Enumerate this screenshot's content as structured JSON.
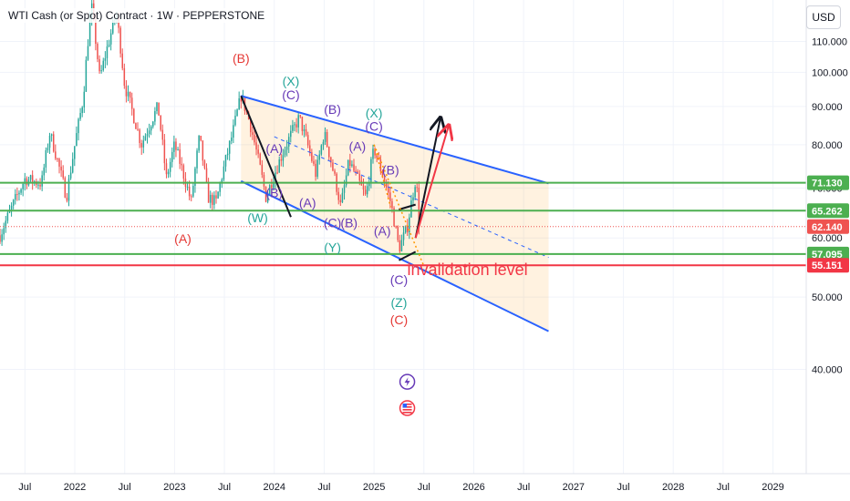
{
  "header": {
    "title": "WTI Cash (or Spot) Contract · 1W · PEPPERSTONE"
  },
  "currency_button": "USD",
  "colors": {
    "up": "#26a69a",
    "down": "#ef5350",
    "channel": "#2962ff",
    "support": "#4caf50",
    "invalidation": "#f23645",
    "fib": "#ff9800",
    "wave_red": "#e53935",
    "wave_teal": "#26a69a",
    "wave_purple": "#673ab7"
  },
  "chart_data": {
    "type": "candlestick",
    "title": "WTI Cash (or Spot) Contract · 1W · PEPPERSTONE",
    "y_axis": {
      "scale": "log",
      "range": [
        29,
        125
      ],
      "tick_labels": [
        "40.000",
        "50.000",
        "60.000",
        "70.000",
        "80.000",
        "90.000",
        "100.000",
        "110.000"
      ]
    },
    "x_axis": {
      "range": [
        "2021-04",
        "2029-05"
      ],
      "tick_labels": [
        {
          "date": "2021-07",
          "label": "Jul"
        },
        {
          "date": "2022-01",
          "label": "2022"
        },
        {
          "date": "2022-07",
          "label": "Jul"
        },
        {
          "date": "2023-01",
          "label": "2023"
        },
        {
          "date": "2023-07",
          "label": "Jul"
        },
        {
          "date": "2024-01",
          "label": "2024"
        },
        {
          "date": "2024-07",
          "label": "Jul"
        },
        {
          "date": "2025-01",
          "label": "2025"
        },
        {
          "date": "2025-07",
          "label": "Jul"
        },
        {
          "date": "2026-01",
          "label": "2026"
        },
        {
          "date": "2026-07",
          "label": "Jul"
        },
        {
          "date": "2027-01",
          "label": "2027"
        },
        {
          "date": "2027-07",
          "label": "Jul"
        },
        {
          "date": "2028-01",
          "label": "2028"
        },
        {
          "date": "2028-07",
          "label": "Jul"
        },
        {
          "date": "2029-01",
          "label": "2029"
        }
      ]
    },
    "price_path": [
      [
        "2021-04",
        60.5
      ],
      [
        "2021-07",
        72
      ],
      [
        "2021-09",
        71
      ],
      [
        "2021-10",
        83
      ],
      [
        "2021-12",
        68
      ],
      [
        "2022-02",
        92
      ],
      [
        "2022-03",
        123
      ],
      [
        "2022-04",
        98
      ],
      [
        "2022-06",
        120
      ],
      [
        "2022-07",
        96
      ],
      [
        "2022-09",
        80
      ],
      [
        "2022-11",
        90
      ],
      [
        "2022-12",
        72
      ],
      [
        "2023-01",
        80
      ],
      [
        "2023-03",
        67
      ],
      [
        "2023-04",
        82
      ],
      [
        "2023-05",
        68
      ],
      [
        "2023-06",
        67
      ],
      [
        "2023-08",
        83
      ],
      [
        "2023-09",
        93
      ],
      [
        "2023-10",
        86
      ],
      [
        "2023-12",
        68
      ],
      [
        "2024-02",
        78
      ],
      [
        "2024-04",
        87
      ],
      [
        "2024-06",
        73
      ],
      [
        "2024-07",
        83
      ],
      [
        "2024-09",
        66
      ],
      [
        "2024-10",
        76
      ],
      [
        "2024-12",
        68
      ],
      [
        "2025-01",
        79
      ],
      [
        "2025-03",
        67
      ],
      [
        "2025-04",
        58
      ],
      [
        "2025-05",
        62
      ],
      [
        "2025-06",
        72
      ],
      [
        "2025-06-20",
        62.14
      ]
    ],
    "horizontal_levels": [
      {
        "value": 71.13,
        "label": "71.130",
        "style": "support"
      },
      {
        "value": 65.262,
        "label": "65.262",
        "style": "support"
      },
      {
        "value": 62.14,
        "label": "62.140",
        "style": "last-price"
      },
      {
        "value": 57.095,
        "label": "57.095",
        "style": "support"
      },
      {
        "value": 55.151,
        "label": "55.151",
        "style": "invalidation"
      }
    ],
    "channel": {
      "upper": [
        [
          "2023-09",
          93
        ],
        [
          "2026-10",
          71
        ]
      ],
      "lower": [
        [
          "2023-09",
          71.5
        ],
        [
          "2026-10",
          45
        ]
      ],
      "mid": [
        [
          "2024-01",
          82
        ],
        [
          "2026-10",
          56.5
        ]
      ]
    },
    "drawings": [
      {
        "kind": "black-line",
        "points": [
          [
            "2023-09",
            93
          ],
          [
            "2024-03",
            64
          ]
        ]
      },
      {
        "kind": "black-line",
        "points": [
          [
            "2025-04",
            56
          ],
          [
            "2025-06",
            57.5
          ]
        ]
      },
      {
        "kind": "black-line",
        "points": [
          [
            "2025-04",
            65.5
          ],
          [
            "2025-06",
            66.5
          ]
        ]
      },
      {
        "kind": "black-arrow",
        "points": [
          [
            "2025-06",
            60
          ],
          [
            "2025-09",
            87
          ]
        ]
      },
      {
        "kind": "red-arrow",
        "points": [
          [
            "2025-06",
            60
          ],
          [
            "2025-10",
            85
          ]
        ]
      },
      {
        "kind": "fib-dotted",
        "points": [
          [
            "2025-01",
            80
          ],
          [
            "2025-07",
            55
          ]
        ]
      },
      {
        "kind": "fib-dotted",
        "points": [
          [
            "2025-01",
            80
          ],
          [
            "2025-03",
            66
          ]
        ]
      }
    ],
    "wave_labels": [
      {
        "text": "(B)",
        "date": "2023-09",
        "value": 103,
        "color": "red"
      },
      {
        "text": "(A)",
        "date": "2023-02",
        "value": 59,
        "color": "red"
      },
      {
        "text": "(X)",
        "date": "2024-03",
        "value": 96,
        "color": "teal"
      },
      {
        "text": "(C)",
        "date": "2024-03",
        "value": 92,
        "color": "purple"
      },
      {
        "text": "(B)",
        "date": "2024-08",
        "value": 88,
        "color": "purple"
      },
      {
        "text": "(A)",
        "date": "2024-01",
        "value": 78,
        "color": "purple"
      },
      {
        "text": "(B)",
        "date": "2024-01",
        "value": 68,
        "color": "purple"
      },
      {
        "text": "(W)",
        "date": "2023-11",
        "value": 63,
        "color": "teal"
      },
      {
        "text": "(A)",
        "date": "2024-05",
        "value": 66,
        "color": "purple"
      },
      {
        "text": "(A)",
        "date": "2024-11",
        "value": 78.5,
        "color": "purple"
      },
      {
        "text": "(X)",
        "date": "2025-01",
        "value": 87,
        "color": "teal"
      },
      {
        "text": "(C)",
        "date": "2025-01",
        "value": 83.5,
        "color": "purple"
      },
      {
        "text": "(B)",
        "date": "2025-03",
        "value": 73,
        "color": "purple"
      },
      {
        "text": "(C)",
        "date": "2024-08",
        "value": 62,
        "color": "purple"
      },
      {
        "text": "(B)",
        "date": "2024-10",
        "value": 62,
        "color": "purple"
      },
      {
        "text": "(A)",
        "date": "2025-02",
        "value": 60.5,
        "color": "purple"
      },
      {
        "text": "(Y)",
        "date": "2024-08",
        "value": 57.5,
        "color": "teal"
      },
      {
        "text": "(C)",
        "date": "2025-04",
        "value": 52,
        "color": "purple"
      },
      {
        "text": "(Z)",
        "date": "2025-04",
        "value": 48.5,
        "color": "teal"
      },
      {
        "text": "(C)",
        "date": "2025-04",
        "value": 46,
        "color": "red"
      }
    ],
    "annotations": [
      {
        "text": "invalidation level",
        "date": "2025-05",
        "value": 53.5
      }
    ],
    "event_icons": [
      {
        "icon": "lightning-icon",
        "date": "2025-05",
        "value": 38.5
      },
      {
        "icon": "us-flag-icon",
        "date": "2025-05",
        "value": 35.5
      }
    ]
  }
}
